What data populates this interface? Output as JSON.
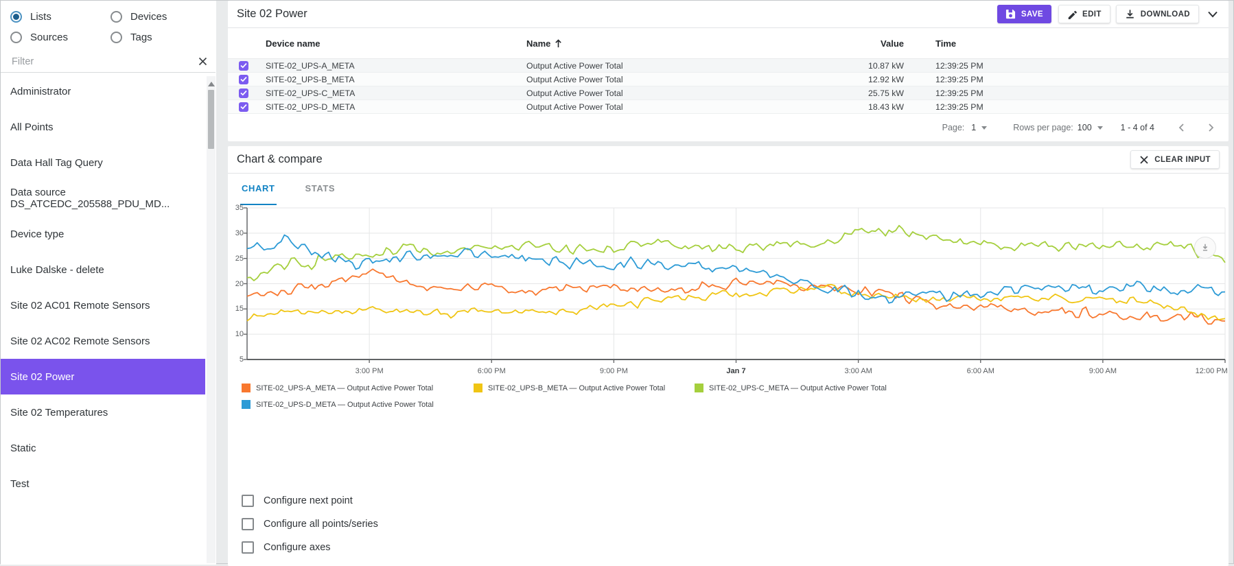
{
  "sidebar": {
    "radios": [
      {
        "label": "Lists",
        "selected": true
      },
      {
        "label": "Devices",
        "selected": false
      },
      {
        "label": "Sources",
        "selected": false
      },
      {
        "label": "Tags",
        "selected": false
      }
    ],
    "filter_placeholder": "Filter",
    "items": [
      "Administrator",
      "All Points",
      "Data Hall Tag Query",
      "Data source DS_ATCEDC_205588_PDU_MD...",
      "Device type",
      "Luke Dalske - delete",
      "Site 02 AC01 Remote Sensors",
      "Site 02 AC02 Remote Sensors",
      "Site 02 Power",
      "Site 02 Temperatures",
      "Static",
      "Test"
    ],
    "selected_item": "Site 02 Power"
  },
  "table_panel": {
    "title": "Site 02 Power",
    "buttons": {
      "save": "SAVE",
      "edit": "EDIT",
      "download": "DOWNLOAD"
    },
    "columns": {
      "device": "Device name",
      "name": "Name",
      "value": "Value",
      "time": "Time"
    },
    "sort": {
      "column": "Name",
      "direction": "asc"
    },
    "rows": [
      {
        "checked": true,
        "device": "SITE-02_UPS-A_META",
        "name": "Output Active Power Total",
        "value": "10.87 kW",
        "time": "12:39:25 PM"
      },
      {
        "checked": true,
        "device": "SITE-02_UPS-B_META",
        "name": "Output Active Power Total",
        "value": "12.92 kW",
        "time": "12:39:25 PM"
      },
      {
        "checked": true,
        "device": "SITE-02_UPS-C_META",
        "name": "Output Active Power Total",
        "value": "25.75 kW",
        "time": "12:39:25 PM"
      },
      {
        "checked": true,
        "device": "SITE-02_UPS-D_META",
        "name": "Output Active Power Total",
        "value": "18.43 kW",
        "time": "12:39:25 PM"
      }
    ],
    "pagination": {
      "page_label": "Page:",
      "page": "1",
      "rows_label": "Rows per page:",
      "rows_per_page": "100",
      "range": "1 - 4 of 4"
    }
  },
  "chart_panel": {
    "title": "Chart & compare",
    "clear_button": "CLEAR INPUT",
    "tabs": [
      {
        "label": "CHART",
        "active": true
      },
      {
        "label": "STATS",
        "active": false
      }
    ],
    "checkboxes": [
      {
        "label": "Configure next point",
        "checked": false
      },
      {
        "label": "Configure all points/series",
        "checked": false
      },
      {
        "label": "Configure axes",
        "checked": false
      }
    ]
  },
  "chart_data": {
    "type": "line",
    "unit": "kW",
    "grid": true,
    "legend_position": "bottom",
    "x_axis": {
      "start": "Jan 6 12:00 PM",
      "end": "Jan 7 12:00 PM",
      "tick_hours": [
        3,
        6,
        9,
        12,
        15,
        18,
        21,
        24
      ],
      "tick_labels": [
        "3:00 PM",
        "6:00 PM",
        "9:00 PM",
        "Jan 7",
        "3:00 AM",
        "6:00 AM",
        "9:00 AM",
        "12:00 PM"
      ]
    },
    "y_axis": {
      "min": 5,
      "max": 35,
      "ticks": [
        5,
        10,
        15,
        20,
        25,
        30,
        35
      ]
    },
    "series": [
      {
        "name": "SITE-02_UPS-A_META — Output Active Power Total",
        "color": "#F8782F",
        "noise": 1.1,
        "hourly_kw": [
          18,
          19,
          20,
          22.5,
          20,
          19,
          19.5,
          18.5,
          19,
          19.5,
          18.5,
          19,
          20,
          20.5,
          19.5,
          19,
          17.5,
          16,
          15.5,
          15,
          14.5,
          14,
          13.5,
          13.5,
          12.5
        ]
      },
      {
        "name": "SITE-02_UPS-B_META — Output Active Power Total",
        "color": "#F0C514",
        "noise": 0.85,
        "hourly_kw": [
          13,
          14.5,
          14.5,
          15,
          14.5,
          14,
          14.5,
          14.5,
          15,
          16,
          17,
          17.5,
          18,
          18.5,
          19.5,
          18,
          17.5,
          17,
          17,
          17.5,
          17,
          17.5,
          16.5,
          15,
          12.8
        ]
      },
      {
        "name": "SITE-02_UPS-C_META — Output Active Power Total",
        "color": "#A5CF3D",
        "noise": 1.3,
        "hourly_kw": [
          21,
          24,
          25.5,
          26,
          27,
          26,
          27,
          28,
          26.5,
          27.5,
          28.5,
          27,
          27,
          28,
          28.5,
          30,
          30.5,
          28.5,
          28,
          27,
          27.5,
          28,
          27.5,
          27.5,
          24
        ]
      },
      {
        "name": "SITE-02_UPS-D_META — Output Active Power Total",
        "color": "#2D9BD6",
        "noise": 1.2,
        "hourly_kw": [
          27,
          28.5,
          25,
          24.5,
          25.5,
          26,
          25.5,
          25,
          24,
          23.5,
          24,
          23.5,
          22.5,
          21,
          19,
          18,
          17.5,
          17.5,
          18,
          18.5,
          19.5,
          19,
          19.5,
          18.5,
          19
        ]
      }
    ]
  },
  "colors": {
    "accent": "#6F49E2",
    "sidebar_selected": "#7A53EC",
    "row_checkbox": "#7C5CF0",
    "tab_active": "#1283C4",
    "series_orange": "#F8782F",
    "series_yellow": "#F0C514",
    "series_green": "#A5CF3D",
    "series_blue": "#2D9BD6"
  }
}
